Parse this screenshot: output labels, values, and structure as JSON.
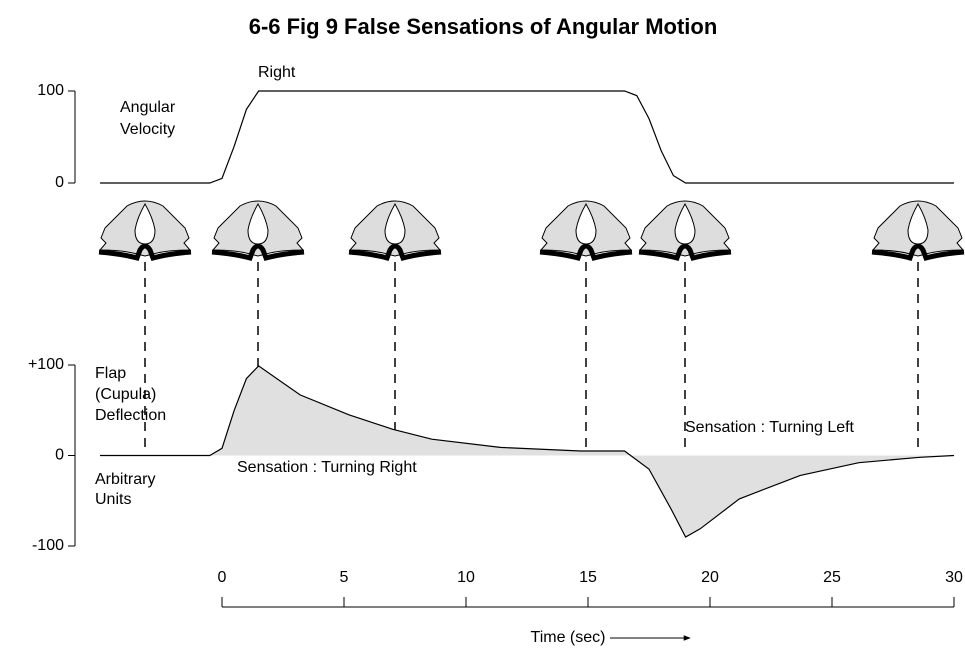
{
  "chart_data": [
    {
      "type": "line",
      "title": "6-6 Fig 9 False Sensations of Angular Motion",
      "ylabel": [
        "Angular",
        "Velocity"
      ],
      "annotations": [
        "Right"
      ],
      "x": [
        -5,
        -0.5,
        0,
        0.5,
        1,
        1.5,
        16.5,
        17,
        17.5,
        18,
        18.5,
        19,
        30
      ],
      "series": [
        {
          "color": "#000000",
          "values": [
            0,
            0,
            5,
            40,
            80,
            100,
            100,
            95,
            70,
            35,
            8,
            0,
            0
          ]
        }
      ],
      "ylim": [
        0,
        100
      ],
      "yticks": [
        0,
        100
      ]
    },
    {
      "type": "line",
      "ylabel": [
        "Flap",
        "(Cupula)",
        "Deflection"
      ],
      "ylabel2": [
        "Arbitrary",
        "Units"
      ],
      "annotations": [
        "Sensation : Turning Right",
        "Sensation : Turning Left"
      ],
      "x": [
        -5,
        -0.5,
        0,
        0.5,
        1,
        1.5,
        3.2,
        5.2,
        7,
        8.6,
        11.4,
        14.7,
        16.5,
        17.5,
        18.4,
        19,
        19.6,
        21.2,
        23.7,
        26.1,
        28.6,
        30
      ],
      "series": [
        {
          "color": "#000000",
          "fill": "#e0e0e0",
          "values": [
            0,
            0,
            8,
            50,
            85,
            99,
            67,
            45,
            29,
            18,
            9,
            5,
            5,
            -15,
            -59,
            -90,
            -81,
            -48,
            -22,
            -8,
            -2,
            0
          ]
        }
      ],
      "xlim": [
        0,
        30
      ],
      "xticks": [
        0,
        5,
        10,
        15,
        20,
        25,
        30
      ],
      "xlabel": "Time (sec)",
      "ylim": [
        -100,
        100
      ],
      "yticks": [
        {
          "value": 100,
          "label": "+100"
        },
        0,
        -100
      ]
    }
  ]
}
